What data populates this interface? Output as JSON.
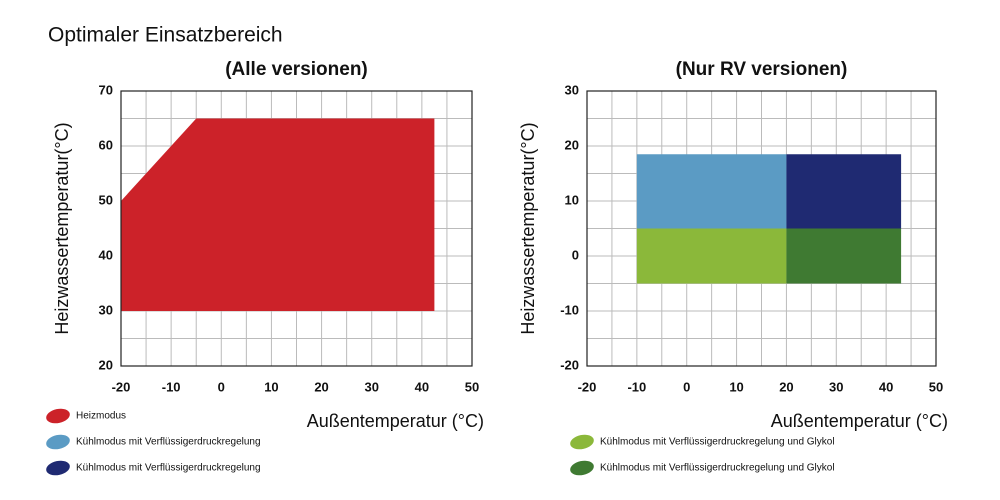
{
  "title": "Optimaler Einsatzbereich",
  "chart_data": [
    {
      "type": "polygon",
      "title": "(Alle versionen)",
      "x_label": "Außentemperatur (°C)",
      "y_label": "Heizwassertemperatur(°C)",
      "xlim": [
        -20,
        50
      ],
      "xticks": [
        -20,
        -10,
        0,
        10,
        20,
        30,
        40,
        50
      ],
      "ylim": [
        20,
        70
      ],
      "yticks": [
        20,
        30,
        40,
        50,
        60,
        70
      ],
      "grid": true,
      "series": [
        {
          "name": "Heizmodus",
          "color": "#cc2229",
          "x": [
            -20,
            -5,
            42.5,
            42.5,
            -20
          ],
          "y": [
            50,
            65,
            65,
            30,
            30
          ]
        }
      ]
    },
    {
      "type": "polygon",
      "title": "(Nur RV versionen)",
      "x_label": "Außentemperatur (°C)",
      "y_label": "Heizwassertemperatur(°C)",
      "xlim": [
        -20,
        50
      ],
      "xticks": [
        -20,
        -10,
        0,
        10,
        20,
        30,
        40,
        50
      ],
      "ylim": [
        -20,
        30
      ],
      "yticks": [
        -20,
        -10,
        0,
        10,
        20,
        30
      ],
      "grid": true,
      "series": [
        {
          "name": "Kühlmodus mit Verflüssigerdruckregelung",
          "color": "#5b9bc4",
          "x": [
            -10,
            20,
            20,
            -10
          ],
          "y": [
            5,
            5,
            18.5,
            18.5
          ]
        },
        {
          "name": "Kühlmodus mit Verflüssigerdruckregelung",
          "color": "#1f2a72",
          "x": [
            20,
            43,
            43,
            20
          ],
          "y": [
            5,
            5,
            18.5,
            18.5
          ]
        },
        {
          "name": "Kühlmodus mit Verflüssigerdruckregelung und Glykol",
          "color": "#8bb83a",
          "x": [
            -10,
            20,
            20,
            -10
          ],
          "y": [
            -5,
            -5,
            5,
            5
          ]
        },
        {
          "name": "Kühlmodus mit Verflüssigerdruckregelung und Glykol",
          "color": "#3f7a32",
          "x": [
            20,
            43,
            43,
            20
          ],
          "y": [
            -5,
            -5,
            5,
            5
          ]
        }
      ]
    }
  ]
}
